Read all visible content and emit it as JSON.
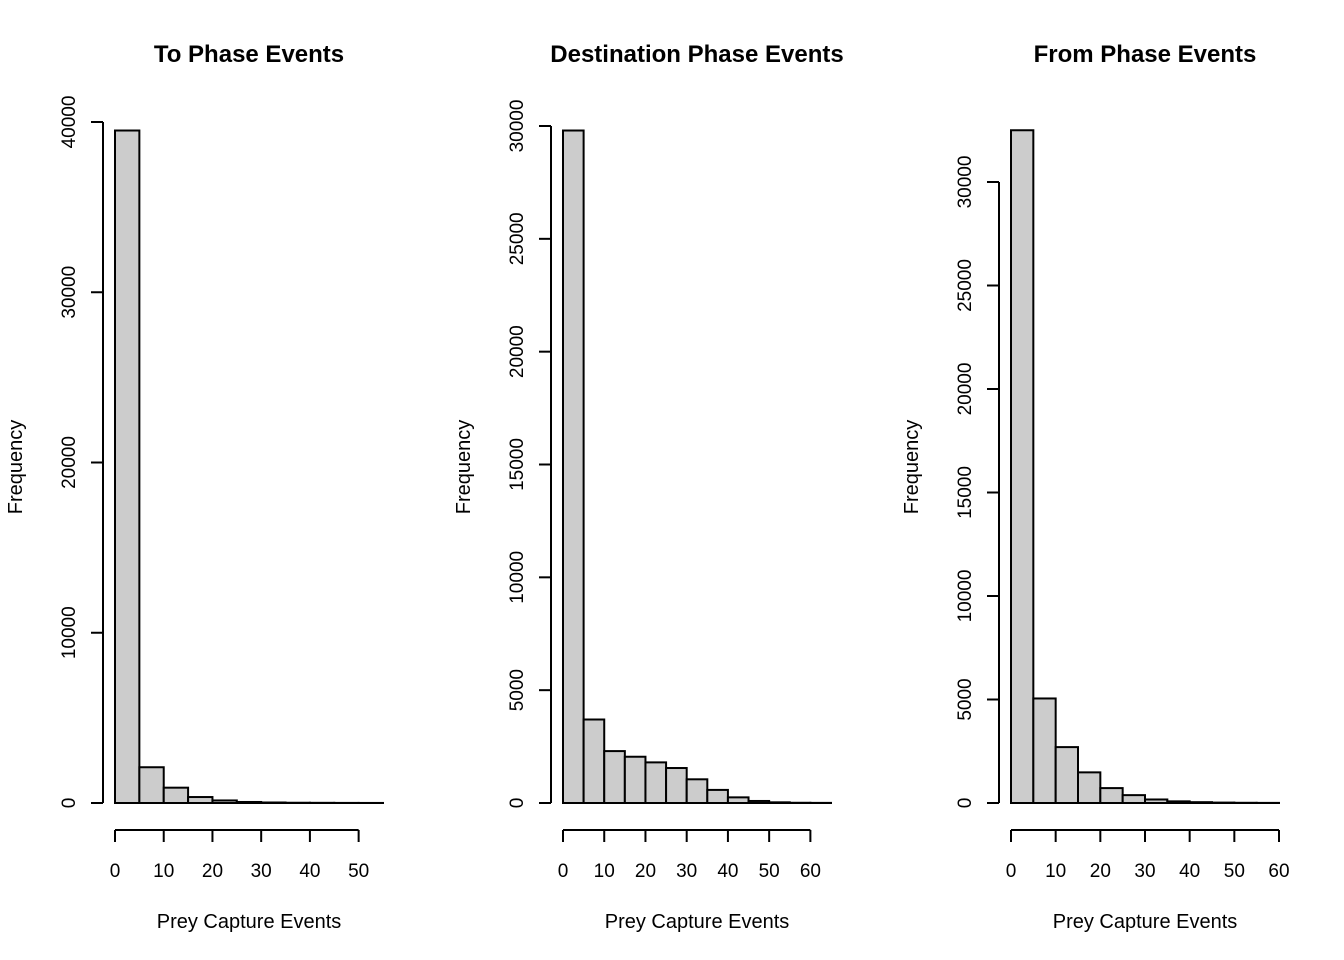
{
  "chart_data": [
    {
      "type": "bar",
      "title": "To Phase Events",
      "xlabel": "Prey Capture Events",
      "ylabel": "Frequency",
      "bin_edges": [
        0,
        5,
        10,
        15,
        20,
        25,
        30,
        35,
        40,
        45,
        50,
        55
      ],
      "values": [
        39500,
        2100,
        900,
        350,
        150,
        60,
        30,
        15,
        10,
        5,
        3
      ],
      "xlim": [
        0,
        55
      ],
      "ylim": [
        0,
        40000
      ],
      "x_ticks": [
        0,
        10,
        20,
        30,
        40,
        50
      ],
      "x_tick_labels": [
        "0",
        "10",
        "20",
        "30",
        "40",
        "50"
      ],
      "y_ticks": [
        0,
        10000,
        20000,
        30000,
        40000
      ],
      "y_tick_labels": [
        "0",
        "10000",
        "20000",
        "30000",
        "40000"
      ]
    },
    {
      "type": "bar",
      "title": "Destination Phase Events",
      "xlabel": "Prey Capture Events",
      "ylabel": "Frequency",
      "bin_edges": [
        0,
        5,
        10,
        15,
        20,
        25,
        30,
        35,
        40,
        45,
        50,
        55,
        60,
        65
      ],
      "values": [
        29800,
        3700,
        2300,
        2050,
        1800,
        1550,
        1050,
        580,
        250,
        90,
        30,
        10,
        5
      ],
      "xlim": [
        0,
        65
      ],
      "ylim": [
        0,
        30000
      ],
      "x_ticks": [
        0,
        10,
        20,
        30,
        40,
        50,
        60
      ],
      "x_tick_labels": [
        "0",
        "10",
        "20",
        "30",
        "40",
        "50",
        "60"
      ],
      "y_ticks": [
        0,
        5000,
        10000,
        15000,
        20000,
        25000,
        30000
      ],
      "y_tick_labels": [
        "0",
        "5000",
        "10000",
        "15000",
        "20000",
        "25000",
        "30000"
      ]
    },
    {
      "type": "bar",
      "title": "From Phase Events",
      "xlabel": "Prey Capture Events",
      "ylabel": "Frequency",
      "bin_edges": [
        0,
        5,
        10,
        15,
        20,
        25,
        30,
        35,
        40,
        45,
        50,
        55,
        60
      ],
      "values": [
        32500,
        5050,
        2700,
        1480,
        720,
        380,
        170,
        80,
        40,
        20,
        10,
        5
      ],
      "xlim": [
        0,
        60
      ],
      "ylim": [
        0,
        30000
      ],
      "x_ticks": [
        0,
        10,
        20,
        30,
        40,
        50,
        60
      ],
      "x_tick_labels": [
        "0",
        "10",
        "20",
        "30",
        "40",
        "50",
        "60"
      ],
      "y_ticks": [
        0,
        5000,
        10000,
        15000,
        20000,
        25000,
        30000
      ],
      "y_tick_labels": [
        "0",
        "5000",
        "10000",
        "15000",
        "20000",
        "25000",
        "30000"
      ]
    }
  ]
}
